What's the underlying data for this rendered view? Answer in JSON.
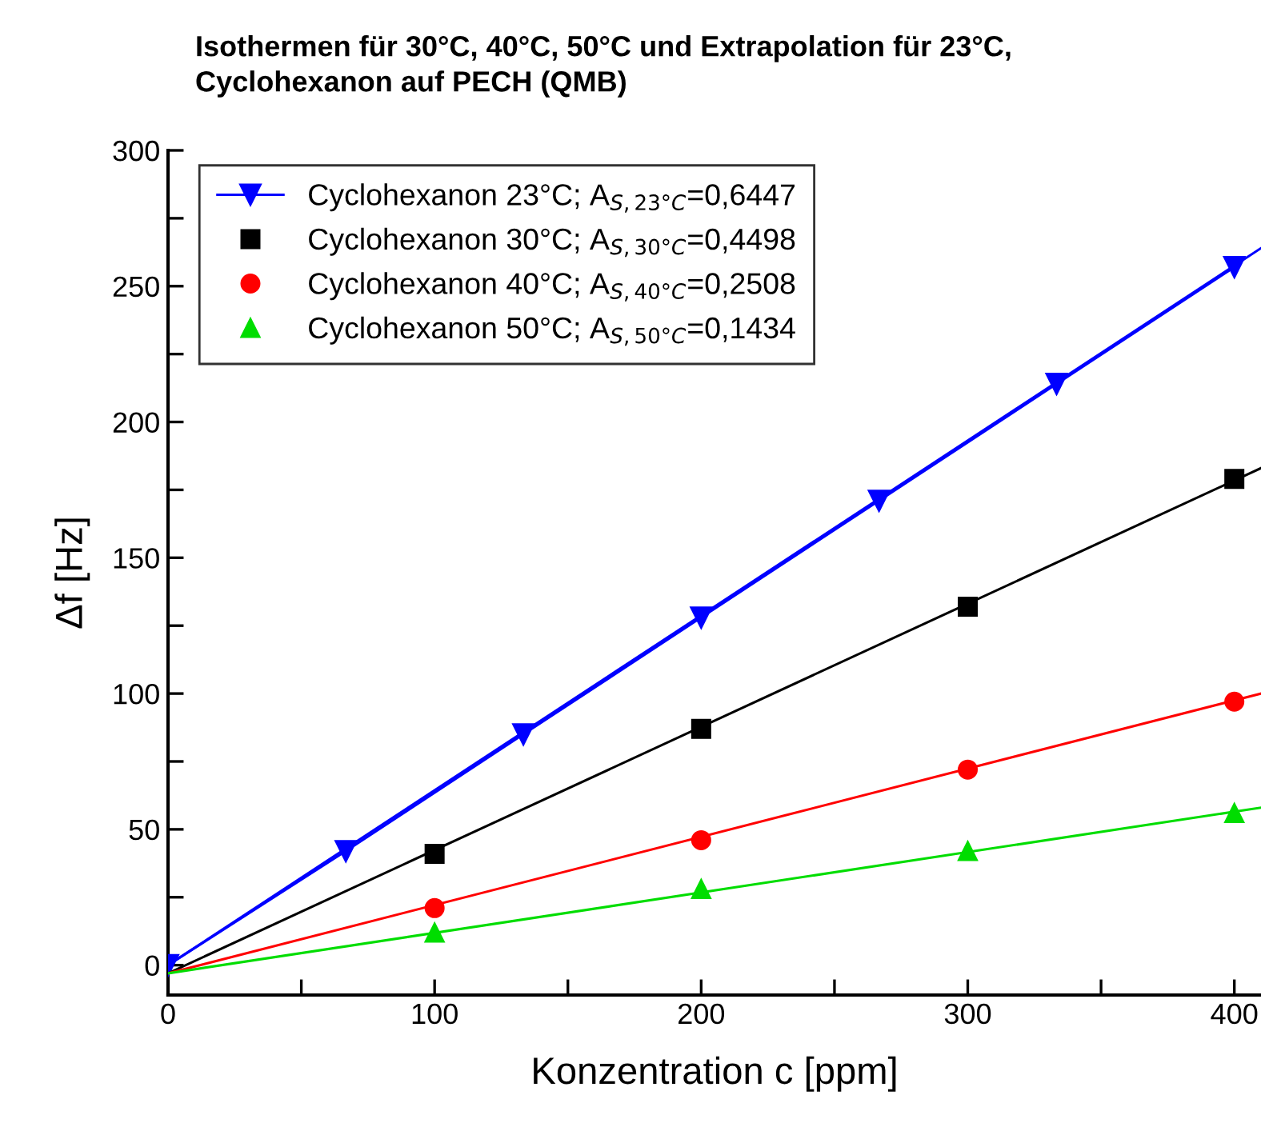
{
  "chart_data": {
    "type": "scatter",
    "title": "Isothermen für 30°C, 40°C, 50°C und Extrapolation für 23°C,\nCyclohexanon auf PECH (QMB)",
    "xlabel": "Konzentration c [ppm]",
    "ylabel": "Δf [Hz]",
    "xlim": [
      0,
      410
    ],
    "ylim": [
      -11,
      300
    ],
    "xticks": [
      0,
      {
        "value": 50,
        "label": null
      },
      100,
      {
        "value": 150,
        "label": null
      },
      200,
      {
        "value": 250,
        "label": null
      },
      300,
      {
        "value": 350,
        "label": null
      },
      400
    ],
    "yticks": [
      0,
      {
        "value": 25,
        "label": null
      },
      50,
      {
        "value": 75,
        "label": null
      },
      100,
      {
        "value": 125,
        "label": null
      },
      150,
      {
        "value": 175,
        "label": null
      },
      200,
      {
        "value": 225,
        "label": null
      },
      250,
      {
        "value": 275,
        "label": null
      },
      300
    ],
    "grid": false,
    "legend": "top left",
    "series": [
      {
        "name": "Cyclohexanon 23°C; A$_{S,23°C}$=0,6447",
        "type": "line",
        "marker": "triangle-down",
        "color": "#0000ff",
        "x": [
          0,
          66.7,
          133.3,
          200,
          266.7,
          333.3,
          400
        ],
        "values": [
          0,
          42,
          85,
          128,
          171,
          214,
          257
        ]
      },
      {
        "name": "Cyclohexanon 30°C; A$_{S,30°C}$=0,4498",
        "marker": "square",
        "color": "#000000",
        "x": [
          100,
          200,
          300,
          400
        ],
        "values": [
          41,
          87,
          132,
          179
        ]
      },
      {
        "name": "Cyclohexanon 40°C; A$_{S,40°C}$=0,2508",
        "marker": "circle",
        "color": "#ff0000",
        "x": [
          100,
          200,
          300,
          400
        ],
        "values": [
          21,
          46,
          72,
          97
        ]
      },
      {
        "name": "Cyclohexanon 50°C; A$_{S,50°C}$=0,1434",
        "marker": "triangle",
        "color": "#00dd00",
        "x": [
          100,
          200,
          300,
          400
        ],
        "values": [
          12,
          28,
          42,
          56
        ]
      },
      {
        "type": "line",
        "marker": "none",
        "color": "#0000ff",
        "x": [
          0,
          410
        ],
        "values": [
          0,
          264
        ]
      },
      {
        "type": "line",
        "marker": "none",
        "color": "#000000",
        "x": [
          0,
          410
        ],
        "values": [
          -3,
          183
        ]
      },
      {
        "type": "line",
        "marker": "none",
        "color": "#ff0000",
        "x": [
          0,
          410
        ],
        "values": [
          -3,
          100
        ]
      },
      {
        "type": "line",
        "marker": "none",
        "color": "#00dd00",
        "x": [
          0,
          410
        ],
        "values": [
          -3,
          58
        ]
      }
    ]
  }
}
